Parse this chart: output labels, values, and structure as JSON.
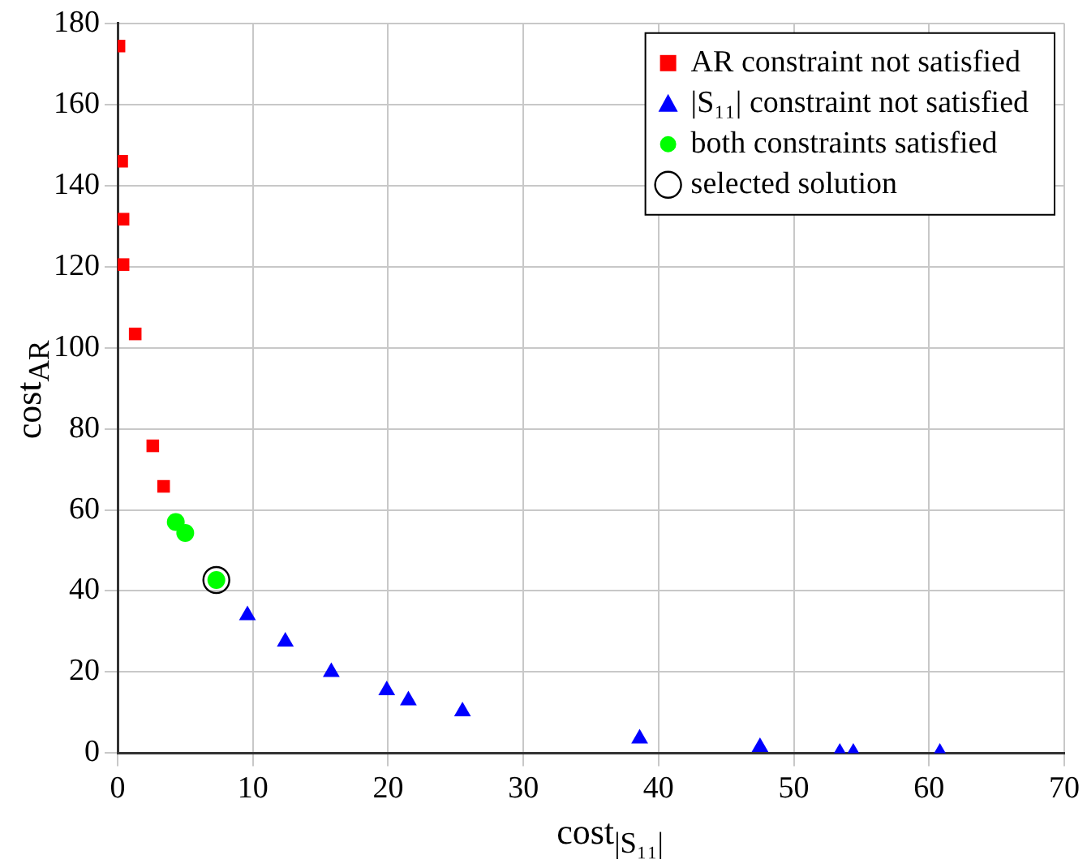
{
  "chart_data": {
    "type": "scatter",
    "xlabel": "cost$_{|S₁₁|}$",
    "ylabel": "cost$_{AR}$",
    "xlim": [
      0,
      70
    ],
    "ylim": [
      0,
      180
    ],
    "xticks": [
      0,
      10,
      20,
      30,
      40,
      50,
      60,
      70
    ],
    "yticks": [
      0,
      20,
      40,
      60,
      80,
      100,
      120,
      140,
      160,
      180
    ],
    "grid": true,
    "legend": "top right",
    "series": [
      {
        "name": "AR constraint not satisfied",
        "color": "#ff0000",
        "marker": "square",
        "x": [
          0.1,
          0.3,
          0.4,
          0.4,
          1.3,
          2.6,
          3.4
        ],
        "values": [
          174.4,
          146,
          131.7,
          120.5,
          103.4,
          75.8,
          65.8
        ]
      },
      {
        "name": "|S₁₁| constraint not satisfied",
        "color": "#0000ff",
        "marker": "triangle",
        "x": [
          9.6,
          12.4,
          15.8,
          19.9,
          21.5,
          25.5,
          38.6,
          47.5,
          53.4,
          54.4,
          60.8
        ],
        "values": [
          34,
          27.5,
          20,
          15.5,
          13,
          10.3,
          3.6,
          1.5,
          0.1,
          0.1,
          0.1
        ]
      },
      {
        "name": "both constraints satisfied",
        "color": "#00ff00",
        "marker": "circle",
        "x": [
          4.3,
          5.0,
          7.3
        ],
        "values": [
          57,
          54.3,
          42.7
        ]
      },
      {
        "name": "selected solution",
        "color": "#000000",
        "marker": "circle",
        "x": [
          7.3
        ],
        "values": [
          42.7
        ]
      }
    ]
  }
}
